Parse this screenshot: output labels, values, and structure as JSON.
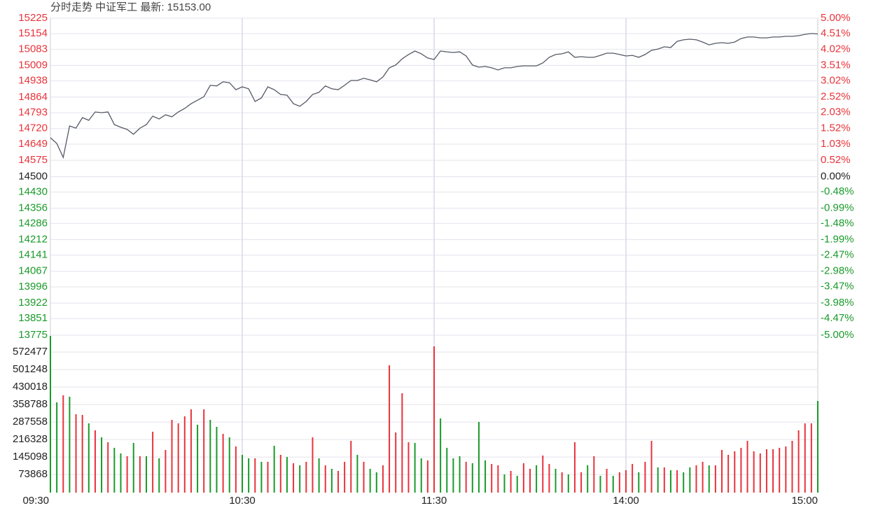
{
  "chart_data": [
    {
      "type": "line",
      "title": "分时走势  中证军工  最新: 15153.00",
      "x": [
        0,
        2,
        4,
        6,
        8,
        10,
        12,
        14,
        16,
        18,
        20,
        22,
        24,
        26,
        28,
        30,
        32,
        34,
        36,
        38,
        40,
        42,
        44,
        46,
        48,
        50,
        52,
        54,
        56,
        58,
        60,
        62,
        64,
        66,
        68,
        70,
        72,
        74,
        76,
        78,
        80,
        82,
        84,
        86,
        88,
        90,
        92,
        94,
        96,
        98,
        100,
        102,
        104,
        106,
        108,
        110,
        112,
        114,
        116,
        118,
        120,
        122,
        124,
        126,
        128,
        130,
        132,
        134,
        136,
        138,
        140,
        142,
        144,
        146,
        148,
        150,
        152,
        154,
        156,
        158,
        160,
        162,
        164,
        166,
        168,
        170,
        172,
        174,
        176,
        178,
        180,
        182,
        184,
        186,
        188,
        190,
        192,
        194,
        196,
        198,
        200,
        202,
        204,
        206,
        208,
        210,
        212,
        214,
        216,
        218,
        220,
        222,
        224,
        226,
        228,
        230,
        232,
        234,
        236,
        238,
        240
      ],
      "series": [
        {
          "color": "#555a66",
          "values": [
            14678,
            14652,
            14588,
            14732,
            14722,
            14770,
            14758,
            14796,
            14793,
            14796,
            14738,
            14726,
            14716,
            14694,
            14722,
            14738,
            14777,
            14764,
            14783,
            14774,
            14796,
            14812,
            14834,
            14850,
            14866,
            14918,
            14915,
            14934,
            14930,
            14898,
            14911,
            14902,
            14844,
            14860,
            14911,
            14898,
            14876,
            14873,
            14834,
            14822,
            14844,
            14876,
            14886,
            14915,
            14902,
            14898,
            14918,
            14940,
            14940,
            14950,
            14943,
            14934,
            14956,
            14998,
            15011,
            15039,
            15059,
            15075,
            15062,
            15043,
            15036,
            15075,
            15071,
            15068,
            15071,
            15052,
            15011,
            15001,
            15004,
            14998,
            14988,
            14998,
            14998,
            15004,
            15007,
            15007,
            15007,
            15020,
            15046,
            15059,
            15062,
            15071,
            15046,
            15049,
            15046,
            15046,
            15055,
            15065,
            15065,
            15059,
            15052,
            15055,
            15046,
            15059,
            15078,
            15084,
            15094,
            15091,
            15119,
            15126,
            15129,
            15126,
            15116,
            15103,
            15110,
            15113,
            15110,
            15116,
            15132,
            15139,
            15139,
            15135,
            15135,
            15139,
            15139,
            15142,
            15142,
            15145,
            15151,
            15155,
            15153
          ]
        }
      ],
      "xlim": [
        0,
        240
      ],
      "xticks": [
        {
          "value": 0,
          "label": "09:30"
        },
        {
          "value": 60,
          "label": "10:30"
        },
        {
          "value": 120,
          "label": "11:30"
        },
        {
          "value": 180,
          "label": "14:00"
        },
        {
          "value": 240,
          "label": "15:00"
        }
      ],
      "ylim": [
        13775,
        15225
      ],
      "yticks": [
        15225,
        15154,
        15083,
        15009,
        14938,
        14864,
        14793,
        14720,
        14649,
        14575,
        14500,
        14430,
        14356,
        14286,
        14212,
        14141,
        14067,
        13996,
        13922,
        13851,
        13775
      ],
      "y2lim": [
        -5,
        5
      ],
      "y2ticks": [
        {
          "value": 5,
          "label": "5.00%"
        },
        {
          "value": 4.51,
          "label": "4.51%"
        },
        {
          "value": 4.02,
          "label": "4.02%"
        },
        {
          "value": 3.51,
          "label": "3.51%"
        },
        {
          "value": 3.02,
          "label": "3.02%"
        },
        {
          "value": 2.52,
          "label": "2.52%"
        },
        {
          "value": 2.03,
          "label": "2.03%"
        },
        {
          "value": 1.52,
          "label": "1.52%"
        },
        {
          "value": 1.03,
          "label": "1.03%"
        },
        {
          "value": 0.52,
          "label": "0.52%"
        },
        {
          "value": 0,
          "label": "0.00%"
        },
        {
          "value": -0.48,
          "label": "-0.48%"
        },
        {
          "value": -0.99,
          "label": "-0.99%"
        },
        {
          "value": -1.48,
          "label": "-1.48%"
        },
        {
          "value": -1.99,
          "label": "-1.99%"
        },
        {
          "value": -2.47,
          "label": "-2.47%"
        },
        {
          "value": -2.98,
          "label": "-2.98%"
        },
        {
          "value": -3.47,
          "label": "-3.47%"
        },
        {
          "value": -3.98,
          "label": "-3.98%"
        },
        {
          "value": -4.47,
          "label": "-4.47%"
        },
        {
          "value": -5,
          "label": "-5.00%"
        }
      ],
      "up_color": "#e8333a",
      "down_color": "#1a9a2a",
      "flat_color": "#222222",
      "grid": true
    },
    {
      "type": "bar",
      "x": [
        0,
        2,
        4,
        6,
        8,
        10,
        12,
        14,
        16,
        18,
        20,
        22,
        24,
        26,
        28,
        30,
        32,
        34,
        36,
        38,
        40,
        42,
        44,
        46,
        48,
        50,
        52,
        54,
        56,
        58,
        60,
        62,
        64,
        66,
        68,
        70,
        72,
        74,
        76,
        78,
        80,
        82,
        84,
        86,
        88,
        90,
        92,
        94,
        96,
        98,
        100,
        102,
        104,
        106,
        108,
        110,
        112,
        114,
        116,
        118,
        120,
        122,
        124,
        126,
        128,
        130,
        132,
        134,
        136,
        138,
        140,
        142,
        144,
        146,
        148,
        150,
        152,
        154,
        156,
        158,
        160,
        162,
        164,
        166,
        168,
        170,
        172,
        174,
        176,
        178,
        180,
        182,
        184,
        186,
        188,
        190,
        192,
        194,
        196,
        198,
        200,
        202,
        204,
        206,
        208,
        210,
        212,
        214,
        216,
        218,
        220,
        222,
        224,
        226,
        228,
        230,
        232,
        234,
        236,
        238,
        240
      ],
      "values": [
        638176,
        367521,
        396011,
        390313,
        319088,
        316239,
        282051,
        253561,
        225071,
        205128,
        182336,
        159544,
        148148,
        202279,
        148148,
        148148,
        247863,
        139601,
        173789,
        296296,
        282051,
        310541,
        339031,
        276353,
        339031,
        296296,
        267806,
        239316,
        225071,
        188034,
        153846,
        139601,
        139601,
        125356,
        125356,
        190883,
        153846,
        145299,
        119658,
        111111,
        125356,
        225071,
        139601,
        111111,
        96866,
        88319,
        125356,
        210826,
        153846,
        125356,
        96866,
        82621,
        111111,
        518518,
        245014,
        404558,
        205128,
        202279,
        139601,
        131054,
        595441,
        301994,
        182336,
        139601,
        148148,
        125356,
        119658,
        287749,
        131054,
        116809,
        111111,
        74074,
        88319,
        68376,
        119658,
        96866,
        111111,
        150997,
        116809,
        96866,
        82621,
        74074,
        205128,
        82621,
        111111,
        148148,
        68376,
        96866,
        68376,
        82621,
        91168,
        116809,
        82621,
        125356,
        210826,
        102564,
        102564,
        91168,
        91168,
        82621,
        102564,
        111111,
        125356,
        111111,
        111111,
        173789,
        153846,
        168091,
        182336,
        210826,
        168091,
        159544,
        176638,
        176638,
        182336,
        188034,
        210826,
        253561,
        282051,
        282051,
        373219
      ],
      "colors": [
        "g",
        "g",
        "r",
        "g",
        "r",
        "r",
        "g",
        "r",
        "g",
        "r",
        "g",
        "g",
        "r",
        "g",
        "r",
        "g",
        "r",
        "g",
        "r",
        "r",
        "r",
        "r",
        "r",
        "g",
        "r",
        "g",
        "g",
        "r",
        "g",
        "r",
        "g",
        "g",
        "r",
        "g",
        "r",
        "g",
        "r",
        "g",
        "r",
        "g",
        "r",
        "r",
        "g",
        "r",
        "g",
        "r",
        "r",
        "r",
        "g",
        "r",
        "g",
        "g",
        "r",
        "r",
        "r",
        "r",
        "r",
        "g",
        "g",
        "r",
        "r",
        "g",
        "g",
        "g",
        "g",
        "r",
        "g",
        "g",
        "g",
        "r",
        "r",
        "g",
        "r",
        "g",
        "r",
        "r",
        "g",
        "r",
        "r",
        "g",
        "r",
        "g",
        "r",
        "r",
        "g",
        "r",
        "g",
        "r",
        "g",
        "r",
        "r",
        "r",
        "g",
        "r",
        "r",
        "g",
        "r",
        "g",
        "r",
        "g",
        "g",
        "r",
        "r",
        "g",
        "r",
        "r",
        "r",
        "r",
        "r",
        "r",
        "r",
        "r",
        "r",
        "r",
        "r",
        "r",
        "r",
        "r",
        "r",
        "r",
        "g"
      ],
      "ylim": [
        0,
        641077
      ],
      "yticks": [
        73868,
        145098,
        216328,
        287558,
        358788,
        430018,
        501248,
        572477
      ],
      "grid": true
    }
  ]
}
